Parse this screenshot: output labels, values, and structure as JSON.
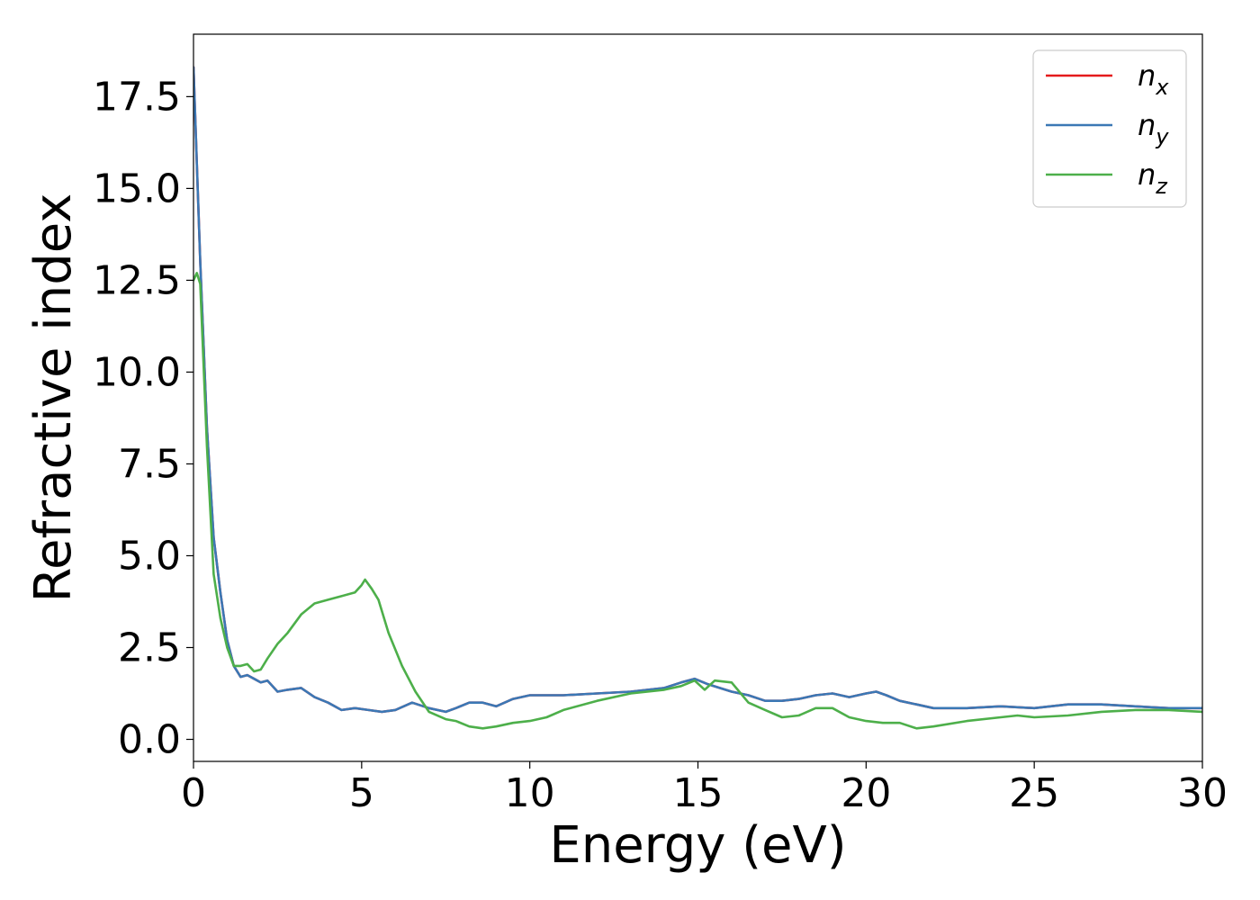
{
  "chart_data": {
    "type": "line",
    "xlabel": "Energy (eV)",
    "ylabel": "Refractive index",
    "xlim": [
      0,
      30
    ],
    "ylim": [
      -0.6,
      19.2
    ],
    "xticks": [
      0,
      5,
      10,
      15,
      20,
      25,
      30
    ],
    "xtick_labels": [
      "0",
      "5",
      "10",
      "15",
      "20",
      "25",
      "30"
    ],
    "yticks": [
      0,
      2.5,
      5,
      7.5,
      10,
      12.5,
      15,
      17.5
    ],
    "ytick_labels": [
      "0.0",
      "2.5",
      "5.0",
      "7.5",
      "10.0",
      "12.5",
      "15.0",
      "17.5"
    ],
    "grid": false,
    "legend_position": "top-right",
    "series": [
      {
        "name": "n",
        "sub": "x",
        "color": "#e41a1c",
        "x": [
          0,
          0.2,
          0.4,
          0.6,
          0.8,
          1.0,
          1.2,
          1.4,
          1.6,
          1.8,
          2.0,
          2.2,
          2.5,
          2.8,
          3.2,
          3.6,
          4.0,
          4.4,
          4.8,
          5.2,
          5.6,
          6.0,
          6.5,
          7.0,
          7.5,
          7.8,
          8.2,
          8.6,
          9.0,
          9.5,
          10.0,
          11.0,
          12.0,
          13.0,
          14.0,
          14.5,
          14.9,
          15.3,
          16.0,
          16.5,
          17.0,
          17.5,
          18.0,
          18.5,
          19.0,
          19.5,
          20.0,
          20.3,
          20.6,
          21.0,
          21.5,
          22.0,
          23.0,
          24.0,
          25.0,
          26.0,
          27.0,
          28.0,
          29.0,
          30.0
        ],
        "y": [
          18.3,
          13.0,
          8.5,
          5.5,
          4.0,
          2.7,
          2.0,
          1.7,
          1.75,
          1.65,
          1.55,
          1.6,
          1.3,
          1.35,
          1.4,
          1.15,
          1.0,
          0.8,
          0.85,
          0.8,
          0.75,
          0.8,
          1.0,
          0.85,
          0.75,
          0.85,
          1.0,
          1.0,
          0.9,
          1.1,
          1.2,
          1.2,
          1.25,
          1.3,
          1.4,
          1.55,
          1.65,
          1.5,
          1.3,
          1.2,
          1.05,
          1.05,
          1.1,
          1.2,
          1.25,
          1.15,
          1.25,
          1.3,
          1.2,
          1.05,
          0.95,
          0.85,
          0.85,
          0.9,
          0.85,
          0.95,
          0.95,
          0.9,
          0.85,
          0.85
        ]
      },
      {
        "name": "n",
        "sub": "y",
        "color": "#3b78b5",
        "x": [
          0,
          0.2,
          0.4,
          0.6,
          0.8,
          1.0,
          1.2,
          1.4,
          1.6,
          1.8,
          2.0,
          2.2,
          2.5,
          2.8,
          3.2,
          3.6,
          4.0,
          4.4,
          4.8,
          5.2,
          5.6,
          6.0,
          6.5,
          7.0,
          7.5,
          7.8,
          8.2,
          8.6,
          9.0,
          9.5,
          10.0,
          11.0,
          12.0,
          13.0,
          14.0,
          14.5,
          14.9,
          15.3,
          16.0,
          16.5,
          17.0,
          17.5,
          18.0,
          18.5,
          19.0,
          19.5,
          20.0,
          20.3,
          20.6,
          21.0,
          21.5,
          22.0,
          23.0,
          24.0,
          25.0,
          26.0,
          27.0,
          28.0,
          29.0,
          30.0
        ],
        "y": [
          18.3,
          13.0,
          8.5,
          5.5,
          4.0,
          2.7,
          2.0,
          1.7,
          1.75,
          1.65,
          1.55,
          1.6,
          1.3,
          1.35,
          1.4,
          1.15,
          1.0,
          0.8,
          0.85,
          0.8,
          0.75,
          0.8,
          1.0,
          0.85,
          0.75,
          0.85,
          1.0,
          1.0,
          0.9,
          1.1,
          1.2,
          1.2,
          1.25,
          1.3,
          1.4,
          1.55,
          1.65,
          1.5,
          1.3,
          1.2,
          1.05,
          1.05,
          1.1,
          1.2,
          1.25,
          1.15,
          1.25,
          1.3,
          1.2,
          1.05,
          0.95,
          0.85,
          0.85,
          0.9,
          0.85,
          0.95,
          0.95,
          0.9,
          0.85,
          0.85
        ]
      },
      {
        "name": "n",
        "sub": "z",
        "color": "#4daf4a",
        "x": [
          0,
          0.1,
          0.2,
          0.4,
          0.6,
          0.8,
          1.0,
          1.2,
          1.4,
          1.6,
          1.8,
          2.0,
          2.2,
          2.5,
          2.8,
          3.2,
          3.6,
          4.0,
          4.4,
          4.8,
          5.0,
          5.1,
          5.3,
          5.5,
          5.8,
          6.2,
          6.6,
          7.0,
          7.5,
          7.8,
          8.2,
          8.6,
          9.0,
          9.5,
          10.0,
          10.5,
          11.0,
          12.0,
          13.0,
          14.0,
          14.5,
          14.9,
          15.2,
          15.5,
          16.0,
          16.5,
          17.0,
          17.5,
          18.0,
          18.5,
          19.0,
          19.5,
          20.0,
          20.5,
          21.0,
          21.5,
          22.0,
          23.0,
          24.0,
          24.5,
          25.0,
          26.0,
          27.0,
          28.0,
          29.0,
          30.0
        ],
        "y": [
          12.5,
          12.7,
          12.4,
          8.0,
          4.5,
          3.3,
          2.5,
          2.0,
          2.0,
          2.05,
          1.85,
          1.9,
          2.2,
          2.6,
          2.9,
          3.4,
          3.7,
          3.8,
          3.9,
          4.0,
          4.2,
          4.35,
          4.1,
          3.8,
          2.9,
          2.0,
          1.3,
          0.75,
          0.55,
          0.5,
          0.35,
          0.3,
          0.35,
          0.45,
          0.5,
          0.6,
          0.8,
          1.05,
          1.25,
          1.35,
          1.45,
          1.6,
          1.35,
          1.6,
          1.55,
          1.0,
          0.8,
          0.6,
          0.65,
          0.85,
          0.85,
          0.6,
          0.5,
          0.45,
          0.45,
          0.3,
          0.35,
          0.5,
          0.6,
          0.65,
          0.6,
          0.65,
          0.75,
          0.8,
          0.8,
          0.75
        ]
      }
    ]
  }
}
